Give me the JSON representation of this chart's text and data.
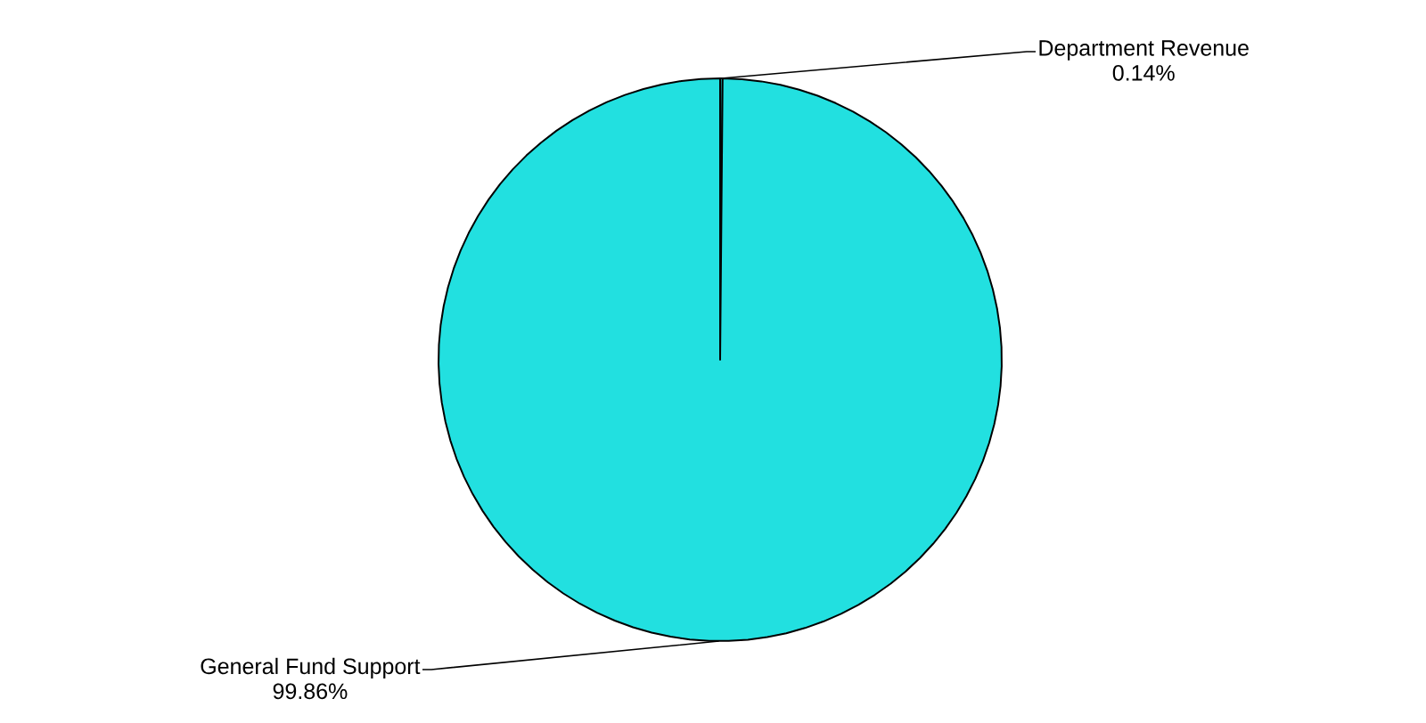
{
  "chart_data": {
    "type": "pie",
    "categories": [
      "Department Revenue",
      "General Fund Support"
    ],
    "values": [
      0.14,
      99.86
    ],
    "value_labels": [
      "0.14%",
      "99.86%"
    ],
    "colors": [
      "#22e0e0",
      "#22e0e0"
    ]
  }
}
